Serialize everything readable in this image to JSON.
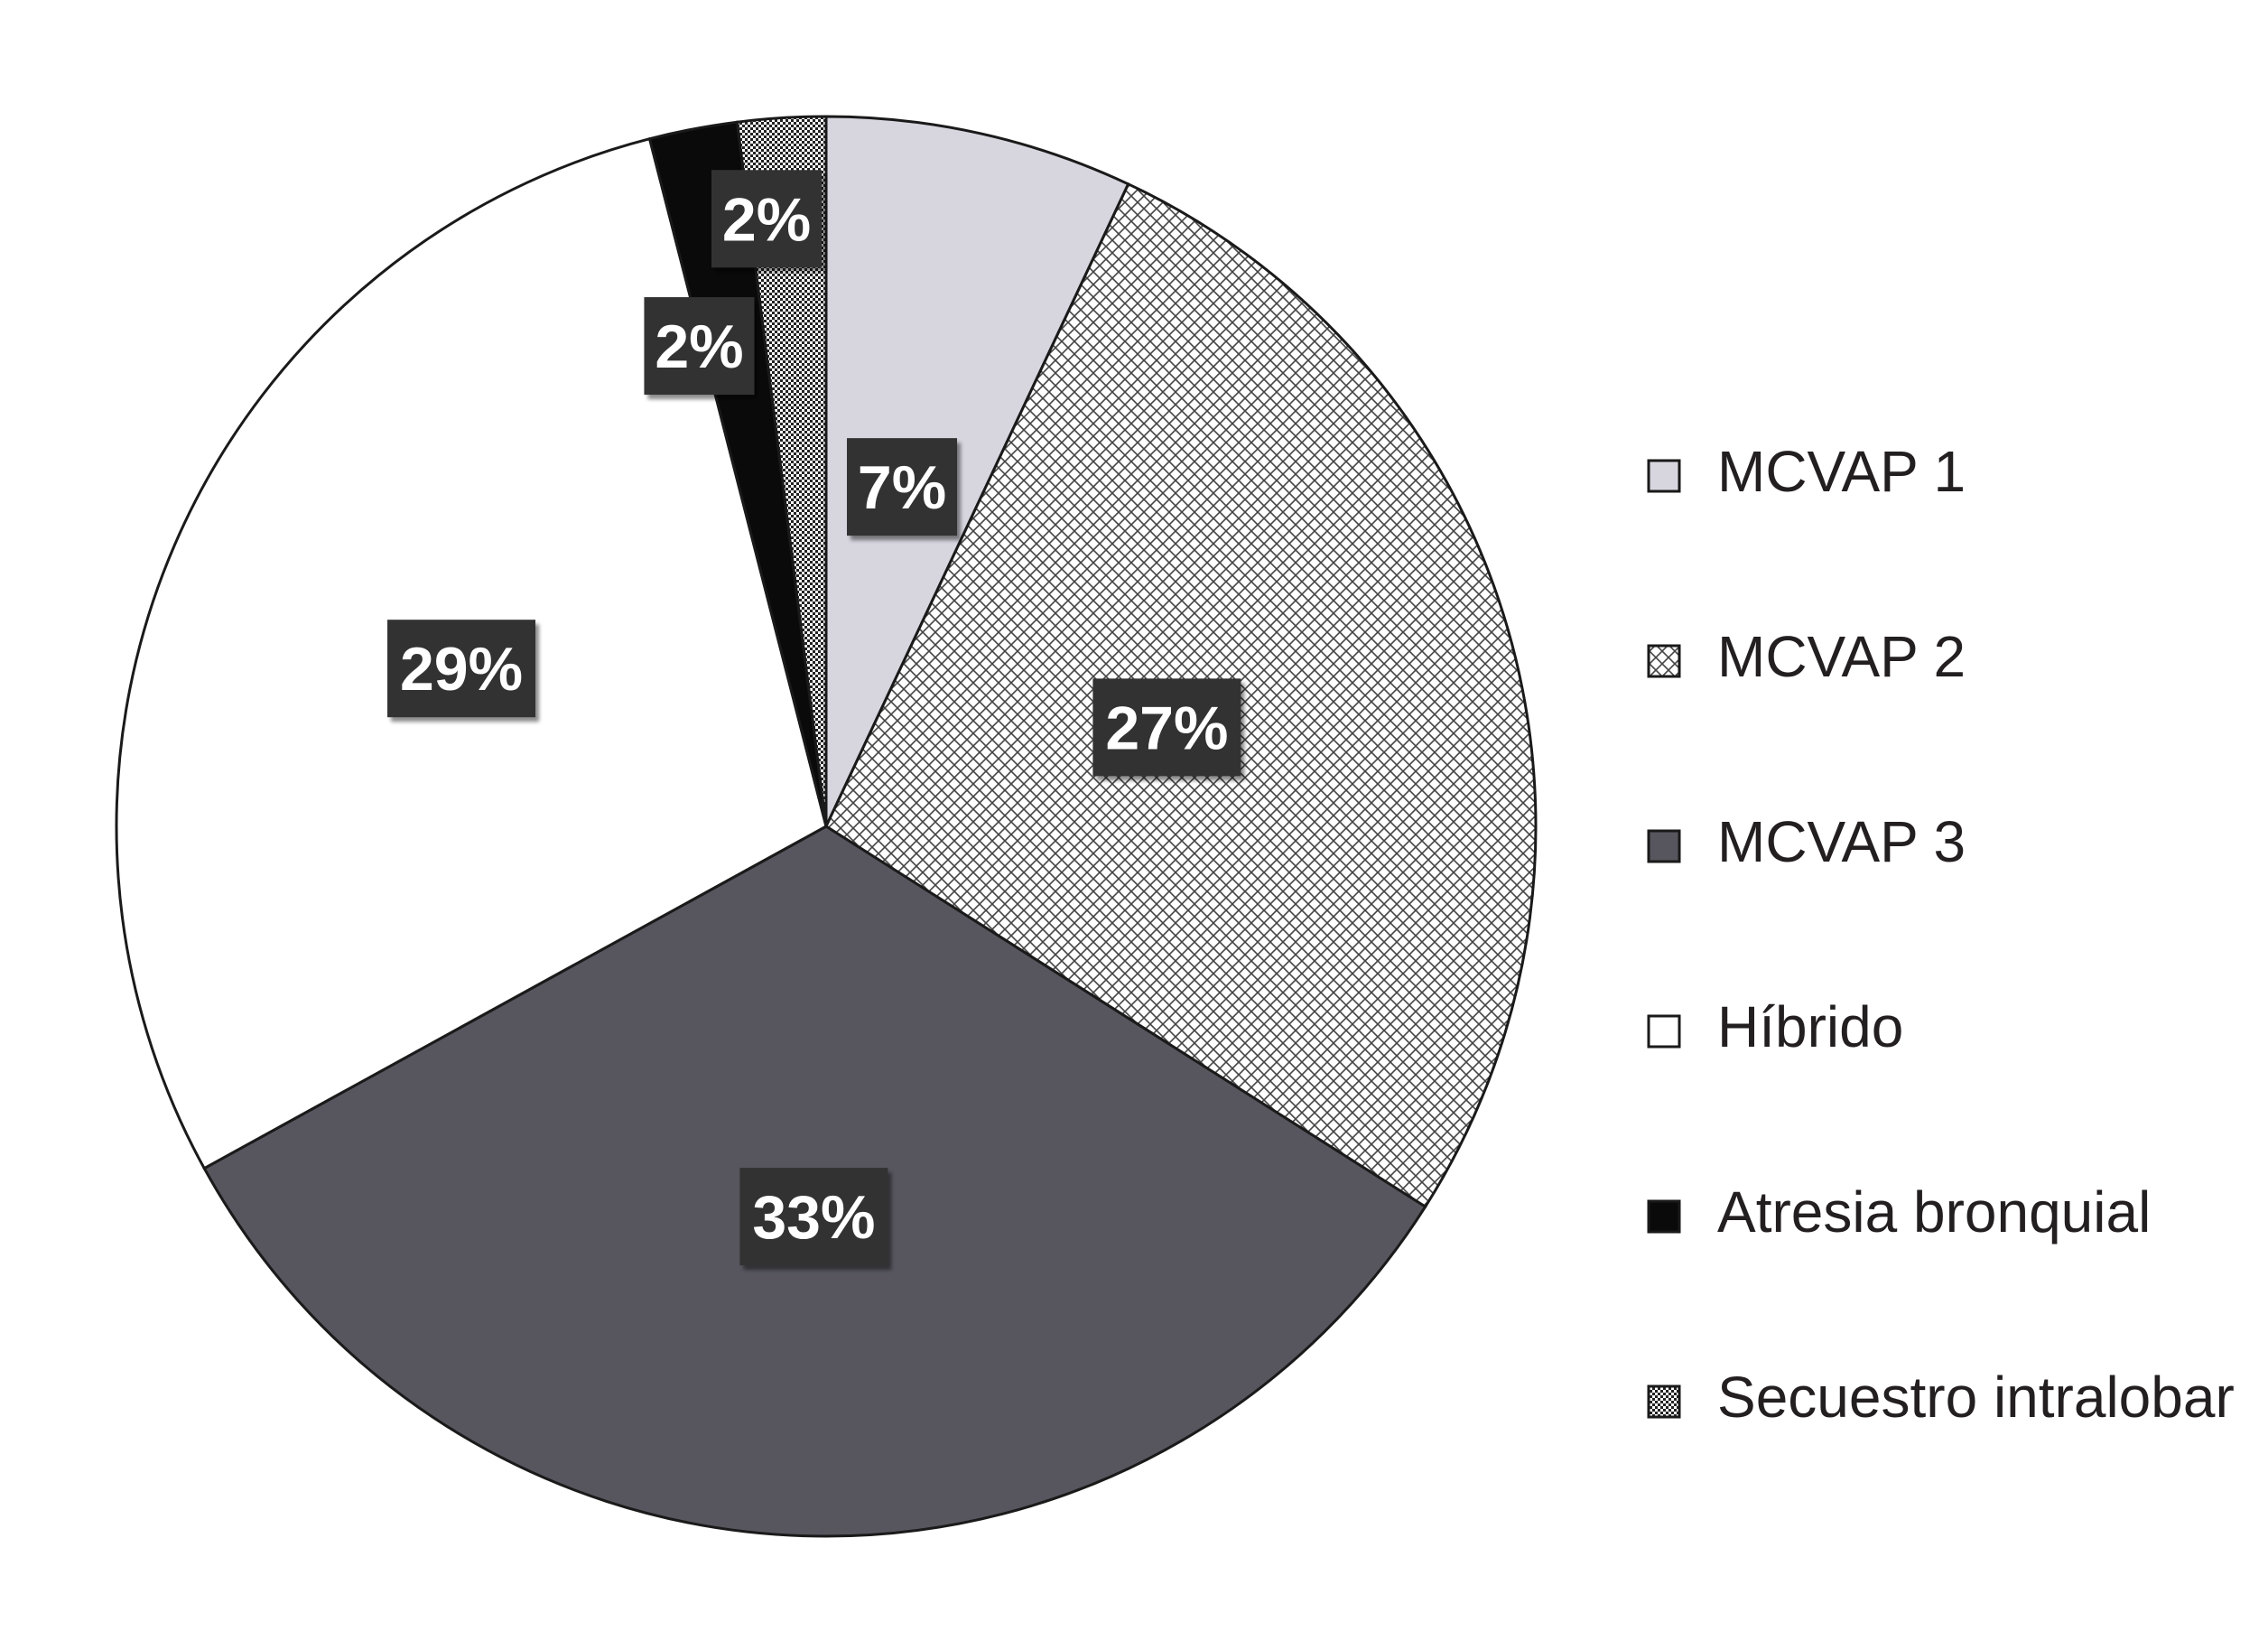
{
  "chart_data": {
    "type": "pie",
    "title": "",
    "start_angle_deg": 0,
    "direction": "clockwise",
    "legend_position": "right",
    "slices": [
      {
        "name": "MCVAP 1",
        "value": 7,
        "label": "7%",
        "fill": "#d7d6df",
        "pattern": "solid"
      },
      {
        "name": "MCVAP 2",
        "value": 27,
        "label": "27%",
        "fill": "#ffffff",
        "pattern": "crosshatch"
      },
      {
        "name": "MCVAP 3",
        "value": 33,
        "label": "33%",
        "fill": "#57565f",
        "pattern": "solid"
      },
      {
        "name": "Híbrido",
        "value": 29,
        "label": "29%",
        "fill": "#ffffff",
        "pattern": "solid"
      },
      {
        "name": "Atresia bronquial",
        "value": 2,
        "label": "2%",
        "fill": "#0a0a0a",
        "pattern": "solid"
      },
      {
        "name": "Secuestro intralobar",
        "value": 2,
        "label": "2%",
        "fill": "#ffffff",
        "pattern": "dots"
      }
    ],
    "colors": {
      "outline": "#1a1a1a",
      "label_box": "#333333",
      "label_text": "#ffffff",
      "hatch": "#444444"
    }
  }
}
